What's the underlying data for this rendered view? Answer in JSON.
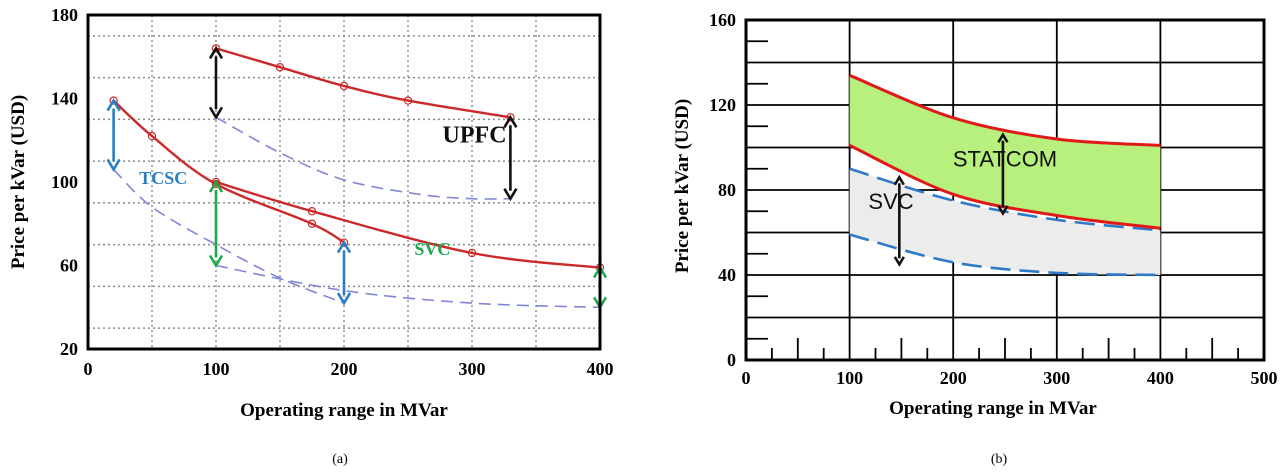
{
  "chart_data": [
    {
      "panel": "a",
      "type": "line",
      "caption": "(a)",
      "xlabel": "Operating range in MVar",
      "ylabel": "Price per kVar (USD)",
      "xlim": [
        0,
        400
      ],
      "ylim": [
        20,
        180
      ],
      "xticks": [
        0,
        100,
        200,
        300,
        400
      ],
      "yticks": [
        20,
        60,
        100,
        140,
        180
      ],
      "grid": "dotted",
      "colors": {
        "upper": "#cc2a2a",
        "lower": "#7f86d8"
      },
      "series": [
        {
          "group": "UPFC",
          "bound": "upper",
          "style": "solid",
          "x": [
            100,
            150,
            200,
            250,
            330
          ],
          "y": [
            164,
            155,
            146,
            139,
            131
          ]
        },
        {
          "group": "UPFC",
          "bound": "lower",
          "style": "dashed",
          "x": [
            100,
            150,
            200,
            260,
            300,
            330
          ],
          "y": [
            131,
            114,
            101,
            94,
            92,
            92
          ]
        },
        {
          "group": "TCSC",
          "bound": "upper",
          "style": "solid",
          "x": [
            20,
            50,
            100,
            175,
            200
          ],
          "y": [
            139,
            122,
            99,
            80,
            71
          ]
        },
        {
          "group": "TCSC",
          "bound": "lower",
          "style": "dashed",
          "x": [
            20,
            50,
            100,
            150,
            200
          ],
          "y": [
            106,
            88,
            70,
            54,
            42
          ]
        },
        {
          "group": "SVC",
          "bound": "upper",
          "style": "solid",
          "x": [
            100,
            175,
            300,
            400
          ],
          "y": [
            100,
            86,
            66,
            59
          ]
        },
        {
          "group": "SVC",
          "bound": "lower",
          "style": "dashed",
          "x": [
            100,
            200,
            300,
            400
          ],
          "y": [
            60,
            48,
            42,
            40
          ]
        }
      ],
      "ranges": [
        {
          "x": 100,
          "from": 164,
          "to": 131,
          "color": "#111111"
        },
        {
          "x": 330,
          "from": 131,
          "to": 92,
          "color": "#111111"
        },
        {
          "x": 20,
          "from": 139,
          "to": 106,
          "color": "#2a7fc4"
        },
        {
          "x": 200,
          "from": 71,
          "to": 42,
          "color": "#2a7fc4"
        },
        {
          "x": 100,
          "from": 100,
          "to": 60,
          "color": "#1fa64a"
        },
        {
          "x": 400,
          "from": 59,
          "to": 40,
          "color": "#1fa64a"
        }
      ],
      "annotations": [
        {
          "text": "UPFC",
          "x": 277,
          "y": 119,
          "color": "#111111"
        },
        {
          "text": "TCSC",
          "x": 40,
          "y": 99,
          "color": "#2a7fc4"
        },
        {
          "text": "SVC",
          "x": 255,
          "y": 65,
          "color": "#1fa64a"
        }
      ]
    },
    {
      "panel": "b",
      "type": "area",
      "caption": "(b)",
      "xlabel": "Operating range in MVar",
      "ylabel": "Price per kVar (USD)",
      "xlim": [
        0,
        500
      ],
      "ylim": [
        0,
        160
      ],
      "xticks": [
        0,
        100,
        200,
        300,
        400,
        500
      ],
      "yticks": [
        0,
        40,
        80,
        120,
        160
      ],
      "grid": "solid",
      "bands": [
        {
          "name": "STATCOM",
          "fill": "#b7f07c",
          "edge": "#e01919",
          "edge_style": "solid",
          "x": [
            100,
            200,
            300,
            400
          ],
          "upper": [
            134,
            114,
            104,
            101
          ],
          "lower": [
            101,
            78,
            68,
            62
          ]
        },
        {
          "name": "SVC",
          "fill": "#ececec",
          "edge": "#2f7ac8",
          "edge_style": "dashed",
          "x": [
            100,
            200,
            300,
            400
          ],
          "upper": [
            90,
            75,
            66,
            61
          ],
          "lower": [
            59,
            46,
            41,
            40
          ]
        }
      ],
      "annotations": [
        {
          "text": "STATCOM",
          "x": 250,
          "y": 91,
          "color": "#111111"
        },
        {
          "text": "SVC",
          "x": 140,
          "y": 71,
          "color": "#111111"
        }
      ],
      "range_arrows": [
        {
          "x": 248,
          "from": 106,
          "to": 69
        },
        {
          "x": 148,
          "from": 86,
          "to": 45
        }
      ]
    }
  ]
}
